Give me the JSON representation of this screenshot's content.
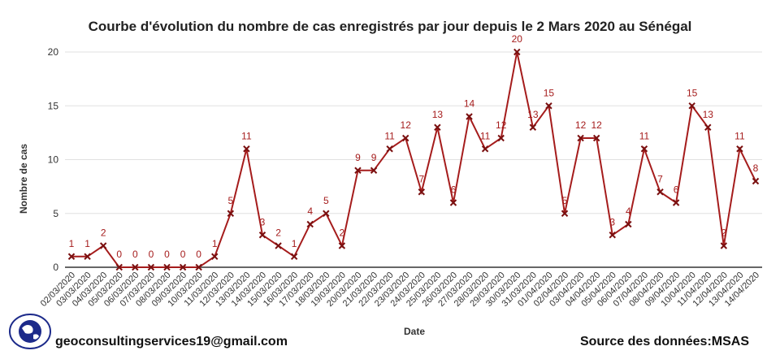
{
  "chart_data": {
    "type": "line",
    "title": "Courbe d'évolution du nombre de cas enregistrés par jour depuis le 2 Mars 2020 au Sénégal",
    "xlabel": "Date",
    "ylabel": "Nombre de cas",
    "ylim": [
      0,
      20
    ],
    "yticks": [
      "0",
      "5",
      "10",
      "15",
      "20"
    ],
    "grid": true,
    "legend": "none",
    "line_color": "#a51c1c",
    "marker_color": "#7a1010",
    "x": [
      "02/03/2020",
      "03/03/2020",
      "04/03/2020",
      "05/03/2020",
      "06/03/2020",
      "07/03/2020",
      "08/03/2020",
      "09/03/2020",
      "10/03/2020",
      "11/03/2020",
      "12/03/2020",
      "13/03/2020",
      "14/03/2020",
      "15/03/2020",
      "16/03/2020",
      "17/03/2020",
      "18/03/2020",
      "19/03/2020",
      "20/03/2020",
      "21/03/2020",
      "22/03/2020",
      "23/03/2020",
      "24/03/2020",
      "25/03/2020",
      "26/03/2020",
      "27/03/2020",
      "28/03/2020",
      "29/03/2020",
      "30/03/2020",
      "31/03/2020",
      "01/04/2020",
      "02/04/2020",
      "03/04/2020",
      "04/04/2020",
      "05/04/2020",
      "06/04/2020",
      "07/04/2020",
      "08/04/2020",
      "09/04/2020",
      "10/04/2020",
      "11/04/2020",
      "12/04/2020",
      "13/04/2020",
      "14/04/2020"
    ],
    "values": [
      1,
      1,
      2,
      0,
      0,
      0,
      0,
      0,
      0,
      1,
      5,
      11,
      3,
      2,
      1,
      4,
      5,
      2,
      9,
      9,
      11,
      12,
      7,
      13,
      6,
      14,
      11,
      12,
      20,
      13,
      15,
      5,
      12,
      12,
      3,
      4,
      11,
      7,
      6,
      15,
      13,
      2,
      11,
      8
    ]
  },
  "footer": {
    "email": "geoconsultingservices19@gmail.com",
    "source": "Source des données:MSAS"
  },
  "logo": {
    "icon": "globe-logo-icon",
    "color": "#1c2a8a"
  }
}
